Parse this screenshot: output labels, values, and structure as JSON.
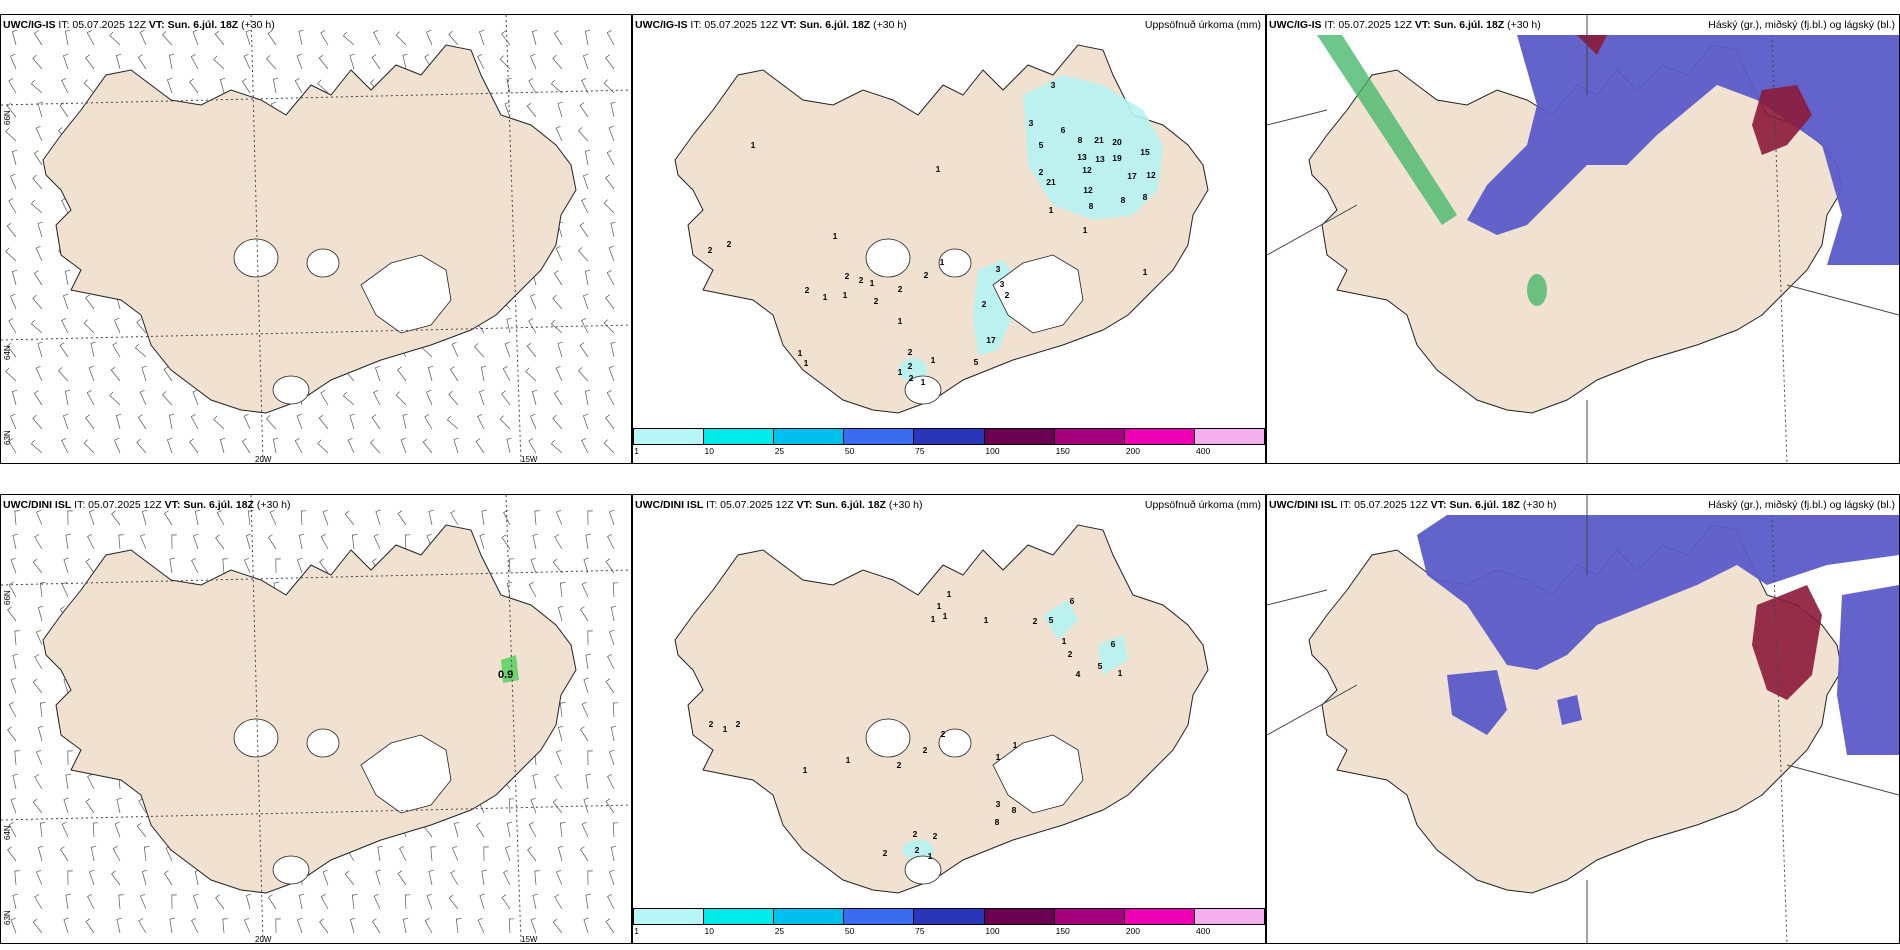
{
  "panels": {
    "r1c1": {
      "model": "UWC/IG-IS",
      "it": "IT: 05.07.2025 12Z",
      "vt_label": "VT:",
      "vt": "Sun. 6.júl. 18Z",
      "lead": "(+30 h)"
    },
    "r1c2": {
      "model": "UWC/IG-IS",
      "it": "IT: 05.07.2025 12Z",
      "vt_label": "VT:",
      "vt": "Sun. 6.júl. 18Z",
      "lead": "(+30 h)",
      "right": "Uppsöfnuð úrkoma (mm)"
    },
    "r1c3": {
      "model": "UWC/IG-IS",
      "it": "IT: 05.07.2025 12Z",
      "vt_label": "VT:",
      "vt": "Sun. 6.júl. 18Z",
      "lead": "(+30 h)",
      "right": "Háský (gr.), miðský (fj.bl.) og lágský (bl.)"
    },
    "r2c1": {
      "model": "UWC/DINI ISL",
      "it": "IT: 05.07.2025 12Z",
      "vt_label": "VT:",
      "vt": "Sun. 6.júl. 18Z",
      "lead": "(+30 h)"
    },
    "r2c2": {
      "model": "UWC/DINI ISL",
      "it": "IT: 05.07.2025 12Z",
      "vt_label": "VT:",
      "vt": "Sun. 6.júl. 18Z",
      "lead": "(+30 h)",
      "right": "Uppsöfnuð úrkoma (mm)"
    },
    "r2c3": {
      "model": "UWC/DINI ISL",
      "it": "IT: 05.07.2025 12Z",
      "vt_label": "VT:",
      "vt": "Sun. 6.júl. 18Z",
      "lead": "(+30 h)",
      "right": "Háský (gr.), miðský (fj.bl.) og lágský (bl.)"
    }
  },
  "geo_labels": {
    "lat66": "66N",
    "lat64": "64N",
    "lat62": "63N",
    "lon20": "20W",
    "lon15": "15W"
  },
  "colorbar": {
    "colors": [
      "#b8f7f7",
      "#00eaea",
      "#00c0ee",
      "#3a6cf0",
      "#2a36b8",
      "#6a0050",
      "#a4007e",
      "#ee00b4",
      "#f4b0ee"
    ],
    "labels": [
      "1",
      "10",
      "25",
      "50",
      "75",
      "100",
      "150",
      "200",
      "400"
    ]
  },
  "wind_marker_value": "0.9",
  "precip_r1": [
    {
      "v": "3",
      "x": 420,
      "y": 73
    },
    {
      "v": "3",
      "x": 398,
      "y": 111
    },
    {
      "v": "6",
      "x": 430,
      "y": 118
    },
    {
      "v": "8",
      "x": 447,
      "y": 128
    },
    {
      "v": "5",
      "x": 408,
      "y": 133
    },
    {
      "v": "21",
      "x": 466,
      "y": 128
    },
    {
      "v": "20",
      "x": 484,
      "y": 130
    },
    {
      "v": "13",
      "x": 449,
      "y": 145
    },
    {
      "v": "13",
      "x": 467,
      "y": 147
    },
    {
      "v": "19",
      "x": 484,
      "y": 146
    },
    {
      "v": "15",
      "x": 512,
      "y": 140
    },
    {
      "v": "12",
      "x": 454,
      "y": 158
    },
    {
      "v": "2",
      "x": 408,
      "y": 160
    },
    {
      "v": "21",
      "x": 418,
      "y": 170
    },
    {
      "v": "12",
      "x": 455,
      "y": 178
    },
    {
      "v": "17",
      "x": 499,
      "y": 164
    },
    {
      "v": "12",
      "x": 518,
      "y": 163
    },
    {
      "v": "8",
      "x": 458,
      "y": 194
    },
    {
      "v": "8",
      "x": 490,
      "y": 188
    },
    {
      "v": "8",
      "x": 512,
      "y": 185
    },
    {
      "v": "1",
      "x": 418,
      "y": 198
    },
    {
      "v": "1",
      "x": 452,
      "y": 218
    },
    {
      "v": "1",
      "x": 120,
      "y": 133
    },
    {
      "v": "1",
      "x": 305,
      "y": 157
    },
    {
      "v": "1",
      "x": 202,
      "y": 224
    },
    {
      "v": "2",
      "x": 96,
      "y": 232
    },
    {
      "v": "2",
      "x": 77,
      "y": 238
    },
    {
      "v": "1",
      "x": 309,
      "y": 250
    },
    {
      "v": "2",
      "x": 293,
      "y": 263
    },
    {
      "v": "2",
      "x": 214,
      "y": 264
    },
    {
      "v": "2",
      "x": 228,
      "y": 268
    },
    {
      "v": "1",
      "x": 239,
      "y": 271
    },
    {
      "v": "2",
      "x": 267,
      "y": 277
    },
    {
      "v": "2",
      "x": 174,
      "y": 278
    },
    {
      "v": "1",
      "x": 212,
      "y": 283
    },
    {
      "v": "1",
      "x": 192,
      "y": 285
    },
    {
      "v": "2",
      "x": 243,
      "y": 289
    },
    {
      "v": "1",
      "x": 267,
      "y": 309
    },
    {
      "v": "3",
      "x": 365,
      "y": 257
    },
    {
      "v": "3",
      "x": 369,
      "y": 272
    },
    {
      "v": "2",
      "x": 374,
      "y": 283
    },
    {
      "v": "2",
      "x": 351,
      "y": 292
    },
    {
      "v": "17",
      "x": 358,
      "y": 328
    },
    {
      "v": "2",
      "x": 277,
      "y": 340
    },
    {
      "v": "1",
      "x": 300,
      "y": 348
    },
    {
      "v": "5",
      "x": 343,
      "y": 350
    },
    {
      "v": "2",
      "x": 277,
      "y": 354
    },
    {
      "v": "2",
      "x": 278,
      "y": 366
    },
    {
      "v": "1",
      "x": 267,
      "y": 360
    },
    {
      "v": "1",
      "x": 290,
      "y": 370
    },
    {
      "v": "1",
      "x": 167,
      "y": 341
    },
    {
      "v": "1",
      "x": 173,
      "y": 351
    },
    {
      "v": "1",
      "x": 512,
      "y": 260
    }
  ],
  "precip_r2": [
    {
      "v": "1",
      "x": 316,
      "y": 102
    },
    {
      "v": "1",
      "x": 306,
      "y": 114
    },
    {
      "v": "1",
      "x": 312,
      "y": 124
    },
    {
      "v": "1",
      "x": 300,
      "y": 127
    },
    {
      "v": "1",
      "x": 353,
      "y": 128
    },
    {
      "v": "2",
      "x": 402,
      "y": 129
    },
    {
      "v": "5",
      "x": 418,
      "y": 128
    },
    {
      "v": "6",
      "x": 439,
      "y": 109
    },
    {
      "v": "1",
      "x": 431,
      "y": 149
    },
    {
      "v": "2",
      "x": 437,
      "y": 162
    },
    {
      "v": "6",
      "x": 480,
      "y": 152
    },
    {
      "v": "5",
      "x": 467,
      "y": 174
    },
    {
      "v": "1",
      "x": 487,
      "y": 181
    },
    {
      "v": "4",
      "x": 445,
      "y": 182
    },
    {
      "v": "2",
      "x": 78,
      "y": 232
    },
    {
      "v": "1",
      "x": 92,
      "y": 237
    },
    {
      "v": "2",
      "x": 105,
      "y": 232
    },
    {
      "v": "2",
      "x": 310,
      "y": 242
    },
    {
      "v": "2",
      "x": 292,
      "y": 258
    },
    {
      "v": "2",
      "x": 266,
      "y": 273
    },
    {
      "v": "1",
      "x": 172,
      "y": 278
    },
    {
      "v": "1",
      "x": 215,
      "y": 268
    },
    {
      "v": "3",
      "x": 365,
      "y": 312
    },
    {
      "v": "8",
      "x": 381,
      "y": 318
    },
    {
      "v": "8",
      "x": 364,
      "y": 330
    },
    {
      "v": "2",
      "x": 282,
      "y": 342
    },
    {
      "v": "2",
      "x": 302,
      "y": 344
    },
    {
      "v": "2",
      "x": 284,
      "y": 358
    },
    {
      "v": "1",
      "x": 297,
      "y": 364
    },
    {
      "v": "2",
      "x": 252,
      "y": 361
    },
    {
      "v": "1",
      "x": 365,
      "y": 265
    },
    {
      "v": "1",
      "x": 382,
      "y": 253
    }
  ]
}
